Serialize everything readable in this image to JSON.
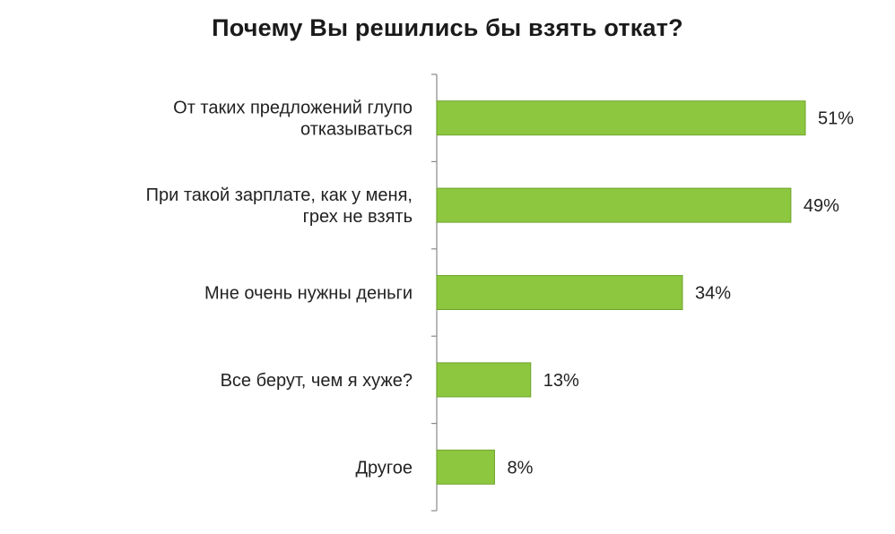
{
  "chart_data": {
    "type": "bar",
    "orientation": "horizontal",
    "title": "Почему Вы решились бы взять откат?",
    "categories": [
      "От таких предложений глупо отказываться",
      "При такой зарплате, как у меня, грех не взять",
      "Мне очень нужны деньги",
      "Все берут, чем я хуже?",
      "Другое"
    ],
    "values": [
      51,
      49,
      34,
      13,
      8
    ],
    "value_labels": [
      "51%",
      "49%",
      "34%",
      "13%",
      "8%"
    ],
    "grid": false,
    "legend": "none",
    "colors": {
      "bar": "#8DC63F",
      "bar_edge": "#6FA52C",
      "axis": "#8a8a8a",
      "text": "#222222"
    }
  }
}
